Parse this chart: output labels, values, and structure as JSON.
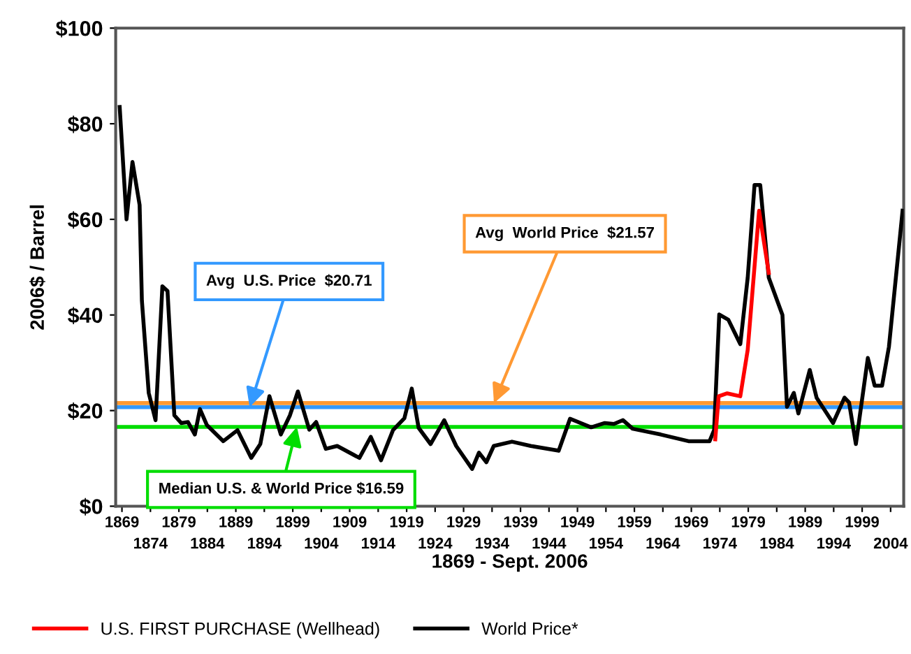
{
  "chart_data": {
    "type": "line",
    "xlabel": "1869 - Sept. 2006",
    "ylabel": "2006$ / Barrel",
    "xlim": [
      1867.9,
      2006.3
    ],
    "xticks": [
      1869,
      1879,
      1889,
      1899,
      1909,
      1919,
      1929,
      1939,
      1949,
      1959,
      1969,
      1979,
      1989,
      1999
    ],
    "x2lim": [
      1867.9,
      2006.3
    ],
    "x2ticks": [
      1874,
      1884,
      1894,
      1904,
      1914,
      1924,
      1934,
      1944,
      1954,
      1964,
      1974,
      1984,
      1994,
      2004
    ],
    "ylim": [
      0,
      100
    ],
    "yticks": [
      {
        "value": 0,
        "label": "$0"
      },
      {
        "value": 20,
        "label": "$20"
      },
      {
        "value": 40,
        "label": "$40"
      },
      {
        "value": 60,
        "label": "$60"
      },
      {
        "value": 80,
        "label": "$80"
      },
      {
        "value": 100,
        "label": "$100"
      }
    ],
    "series": [
      {
        "name": "World Price*",
        "color": "#000000",
        "x": [
          1868.6,
          1869.8,
          1870.85,
          1872.1,
          1872.5,
          1873.7,
          1874.9,
          1876.1,
          1877.0,
          1878.2,
          1879.4,
          1880.6,
          1881.8,
          1882.7,
          1883.9,
          1886.8,
          1889.3,
          1891.7,
          1893.3,
          1894.9,
          1896.9,
          1898.5,
          1899.9,
          1901.9,
          1903.1,
          1904.8,
          1906.8,
          1910.7,
          1912.7,
          1914.5,
          1916.6,
          1918.6,
          1919.9,
          1921.1,
          1923.2,
          1925.6,
          1927.7,
          1930.5,
          1931.7,
          1933.0,
          1934.3,
          1937.5,
          1940.8,
          1945.7,
          1947.7,
          1951.4,
          1953.8,
          1955.4,
          1957.0,
          1958.7,
          1963.6,
          1968.5,
          1972.2,
          1973.0,
          1973.9,
          1975.5,
          1977.6,
          1978.9,
          1980.1,
          1981.1,
          1982.6,
          1985.0,
          1985.8,
          1987.0,
          1987.8,
          1989.8,
          1991.0,
          1993.9,
          1995.9,
          1996.7,
          1997.9,
          2000.0,
          2001.2,
          2002.5,
          2003.7,
          2006.1
        ],
        "values": [
          83.5,
          60,
          72,
          63,
          43,
          23.7,
          18,
          46,
          45,
          19,
          17.4,
          17.6,
          15,
          20.3,
          17,
          13.6,
          15.9,
          10.1,
          13,
          23,
          15,
          19,
          24,
          16,
          17.6,
          12,
          12.6,
          10.1,
          14.5,
          9.6,
          15.9,
          18.4,
          24.6,
          16.4,
          13,
          18,
          12.6,
          7.8,
          11.2,
          9.2,
          12.6,
          13.5,
          12.6,
          11.6,
          18.3,
          16.5,
          17.4,
          17.2,
          18,
          16.2,
          15,
          13.6,
          13.6,
          15.9,
          40.1,
          39,
          33.9,
          47.8,
          67.2,
          67.2,
          47.8,
          40,
          20.8,
          23.7,
          19.4,
          28.5,
          22.7,
          17.4,
          22.7,
          21.7,
          13,
          31,
          25.2,
          25.2,
          33.3,
          61.8
        ]
      },
      {
        "name": "U.S. FIRST PURCHASE (Wellhead)",
        "color": "#ff0000",
        "x": [
          1973.2,
          1973.8,
          1975.3,
          1977.6,
          1978.9,
          1980.9,
          1982.6
        ],
        "values": [
          14,
          23,
          23.6,
          23,
          32.7,
          61.8,
          48.8
        ]
      }
    ],
    "ref_lines": [
      {
        "axis": "y",
        "value": 20.71,
        "label": "Avg  U.S. Price  $20.71",
        "color": "#3399ff"
      },
      {
        "axis": "y",
        "value": 21.57,
        "label": "Avg  World Price  $21.57",
        "color": "#ff9933"
      },
      {
        "axis": "y",
        "value": 16.59,
        "label": "Median U.S. & World Price $16.59",
        "color": "#00dd00"
      }
    ],
    "grid": false,
    "legend": "bottom left",
    "line_style": "solid",
    "marker": "none"
  }
}
